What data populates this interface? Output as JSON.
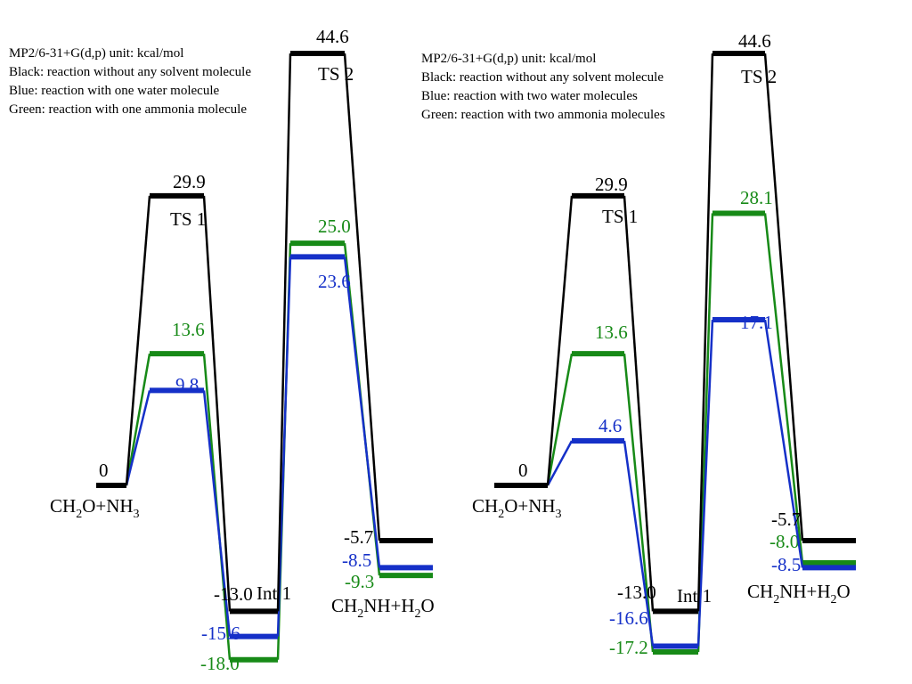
{
  "colors": {
    "black": "#000000",
    "blue": "#1530c8",
    "green": "#178a17"
  },
  "diagrams": [
    {
      "legend": [
        "MP2/6-31+G(d,p)  unit: kcal/mol",
        "Black: reaction without any solvent molecule",
        "Blue: reaction with one water molecule",
        "Green: reaction with one ammonia molecule"
      ],
      "labels": {
        "reactant": [
          "CH",
          "2",
          "O+NH",
          "3"
        ],
        "ts1": "TS 1",
        "int1": "Int 1",
        "ts2": "TS 2",
        "product": [
          "CH",
          "2",
          "NH+H",
          "2",
          "O"
        ]
      },
      "series": {
        "black": [
          0,
          29.9,
          -13.0,
          44.6,
          -5.7
        ],
        "blue": [
          0,
          9.8,
          -15.6,
          23.6,
          -8.5
        ],
        "green": [
          0,
          13.6,
          -18.0,
          25.0,
          -9.3
        ]
      },
      "value_labels": {
        "black": [
          "0",
          "29.9",
          "-13.0",
          "44.6",
          "-5.7"
        ],
        "blue": [
          "",
          "9.8",
          "-15.6",
          "23.6",
          "-8.5"
        ],
        "green": [
          "",
          "13.6",
          "-18.0",
          "25.0",
          "-9.3"
        ]
      }
    },
    {
      "legend": [
        "MP2/6-31+G(d,p)  unit: kcal/mol",
        "Black: reaction without any solvent molecule",
        "Blue: reaction with two water molecules",
        "Green: reaction with two ammonia molecules"
      ],
      "labels": {
        "reactant": [
          "CH",
          "2",
          "O+NH",
          "3"
        ],
        "ts1": "TS 1",
        "int1": "Int 1",
        "ts2": "TS 2",
        "product": [
          "CH",
          "2",
          "NH+H",
          "2",
          "O"
        ]
      },
      "series": {
        "black": [
          0,
          29.9,
          -13.0,
          44.6,
          -5.7
        ],
        "blue": [
          0,
          4.6,
          -16.6,
          17.1,
          -8.5
        ],
        "green": [
          0,
          13.6,
          -17.2,
          28.1,
          -8.0
        ]
      },
      "value_labels": {
        "black": [
          "0",
          "29.9",
          "-13.0",
          "44.6",
          "-5.7"
        ],
        "blue": [
          "",
          "4.6",
          "-16.6",
          "17.1",
          "-8.5"
        ],
        "green": [
          "",
          "13.6",
          "-17.2",
          "28.1",
          "-8.0"
        ]
      }
    }
  ]
}
